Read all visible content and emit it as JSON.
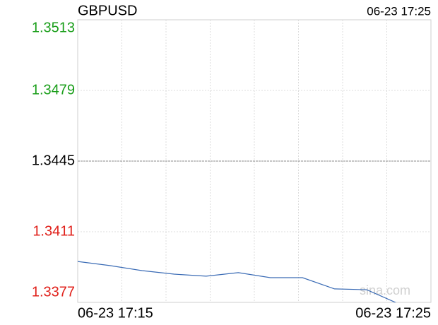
{
  "chart_data": {
    "type": "line",
    "title": "GBPUSD",
    "timestamp": "06-23 17:25",
    "x_labels": [
      "06-23 17:15",
      "06-23 17:25"
    ],
    "series": [
      {
        "name": "GBPUSD",
        "color": "#3a6bb5",
        "values": [
          1.33967,
          1.33947,
          1.33923,
          1.33906,
          1.33896,
          1.33913,
          1.33889,
          1.33889,
          1.33835,
          1.33831,
          1.33763
        ]
      }
    ],
    "ylim": [
      1.3377,
      1.3513
    ],
    "yticks": [
      1.3377,
      1.3411,
      1.3445,
      1.3479,
      1.3513
    ],
    "reference": 1.3445,
    "up_color": "#1a9e1a",
    "down_color": "#e0201a",
    "flat_color": "#000000",
    "grid": true,
    "watermark": "sina.com"
  }
}
